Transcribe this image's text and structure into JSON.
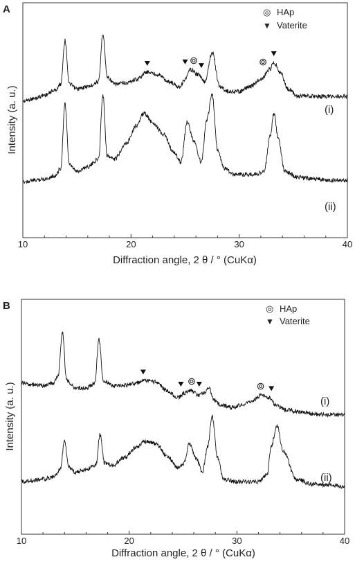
{
  "chart_data": [
    {
      "panel": "A",
      "type": "line",
      "xlabel": "Diffraction angle, 2 θ / ° (CuKα)",
      "ylabel": "Intensity (a. u.)",
      "xlim": [
        10,
        40
      ],
      "xticks": [
        "10",
        "20",
        "30",
        "40"
      ],
      "legend": [
        {
          "marker": "◎",
          "label": "HAp"
        },
        {
          "marker": "▼",
          "label": "Vaterite"
        }
      ],
      "series": [
        {
          "name": "(i)",
          "x": [
            10,
            11,
            12,
            13,
            13.5,
            13.9,
            14.3,
            15,
            16,
            17,
            17.4,
            17.8,
            18.5,
            19.5,
            20.5,
            21.5,
            22.5,
            23.5,
            24.5,
            25.0,
            25.5,
            26.2,
            26.8,
            27.5,
            28.2,
            29,
            30,
            31,
            32,
            32.8,
            33.2,
            33.8,
            34.5,
            35.5,
            37,
            38.5,
            40
          ],
          "y": [
            8,
            10,
            13,
            17,
            22,
            58,
            22,
            18,
            20,
            24,
            64,
            28,
            22,
            23,
            26,
            32,
            30,
            24,
            20,
            26,
            34,
            30,
            24,
            48,
            20,
            16,
            16,
            20,
            26,
            34,
            40,
            32,
            18,
            12,
            12,
            12,
            12
          ]
        },
        {
          "name": "(ii)",
          "x": [
            10,
            11,
            12,
            13,
            13.5,
            13.9,
            14.3,
            15,
            16,
            17,
            17.4,
            17.8,
            18.5,
            19.5,
            20.5,
            21.2,
            22,
            23,
            24,
            24.6,
            25.2,
            25.8,
            26.5,
            27.0,
            27.5,
            28.0,
            28.6,
            29.5,
            30.5,
            31.5,
            32.3,
            32.9,
            33.2,
            33.6,
            34.2,
            35.5,
            37,
            38.5,
            40
          ],
          "y": [
            7,
            8,
            9,
            11,
            16,
            58,
            18,
            14,
            17,
            22,
            64,
            24,
            22,
            32,
            44,
            52,
            46,
            38,
            26,
            20,
            46,
            34,
            20,
            48,
            64,
            28,
            16,
            12,
            12,
            12,
            14,
            38,
            52,
            36,
            14,
            10,
            9,
            8,
            8
          ]
        }
      ],
      "annotations": [
        {
          "label": "(i)"
        },
        {
          "label": "(ii)"
        }
      ],
      "markers": [
        {
          "series": "(i)",
          "symbol": "▼",
          "x": 21.5
        },
        {
          "series": "(i)",
          "symbol": "▼",
          "x": 25.0
        },
        {
          "series": "(i)",
          "symbol": "◎",
          "x": 25.8
        },
        {
          "series": "(i)",
          "symbol": "▼",
          "x": 26.5
        },
        {
          "series": "(i)",
          "symbol": "◎",
          "x": 32.2
        },
        {
          "series": "(i)",
          "symbol": "▼",
          "x": 33.2
        }
      ]
    },
    {
      "panel": "B",
      "type": "line",
      "xlabel": "Diffraction angle, 2 θ / ° (CuKα)",
      "ylabel": "Intensity (a. u.)",
      "xlim": [
        10,
        40
      ],
      "xticks": [
        "10",
        "20",
        "30",
        "40"
      ],
      "legend": [
        {
          "marker": "◎",
          "label": "HAp"
        },
        {
          "marker": "▼",
          "label": "Vaterite"
        }
      ],
      "series": [
        {
          "name": "(i)",
          "x": [
            10,
            11,
            12,
            13,
            13.4,
            13.8,
            14.2,
            15,
            16,
            16.8,
            17.2,
            17.6,
            18.5,
            19.5,
            20.5,
            21.5,
            22.5,
            23.5,
            24.5,
            25.2,
            25.8,
            26.4,
            27.0,
            27.4,
            27.9,
            28.5,
            29.5,
            30.5,
            31.5,
            32.3,
            33.0,
            33.6,
            34.5,
            36,
            38,
            40
          ],
          "y": [
            28,
            27,
            26,
            28,
            34,
            70,
            30,
            24,
            24,
            28,
            64,
            30,
            26,
            26,
            28,
            30,
            29,
            22,
            16,
            20,
            22,
            18,
            20,
            24,
            14,
            10,
            8,
            10,
            14,
            18,
            16,
            10,
            6,
            4,
            2,
            2
          ]
        },
        {
          "name": "(ii)",
          "x": [
            10,
            11,
            12,
            13,
            13.6,
            14.0,
            14.4,
            15,
            16,
            16.9,
            17.3,
            17.7,
            18.5,
            19.5,
            20.5,
            21.5,
            22.5,
            23.5,
            24.5,
            25.0,
            25.6,
            26.2,
            26.8,
            27.3,
            27.7,
            28.2,
            28.8,
            29.8,
            31,
            32,
            32.8,
            33.2,
            33.7,
            34.3,
            35.5,
            37,
            38.5,
            40
          ],
          "y": [
            10,
            11,
            12,
            14,
            20,
            44,
            22,
            18,
            20,
            24,
            50,
            26,
            24,
            30,
            38,
            44,
            42,
            32,
            22,
            24,
            42,
            30,
            18,
            40,
            66,
            30,
            12,
            10,
            10,
            10,
            16,
            40,
            58,
            36,
            12,
            8,
            7,
            6
          ]
        }
      ],
      "annotations": [
        {
          "label": "(i)"
        },
        {
          "label": "(ii)"
        }
      ],
      "markers": [
        {
          "series": "(i)",
          "symbol": "▼",
          "x": 21.3
        },
        {
          "series": "(i)",
          "symbol": "▼",
          "x": 24.8
        },
        {
          "series": "(i)",
          "symbol": "◎",
          "x": 25.8
        },
        {
          "series": "(i)",
          "symbol": "▼",
          "x": 26.5
        },
        {
          "series": "(i)",
          "symbol": "◎",
          "x": 32.2
        },
        {
          "series": "(i)",
          "symbol": "▼",
          "x": 33.2
        }
      ]
    }
  ]
}
